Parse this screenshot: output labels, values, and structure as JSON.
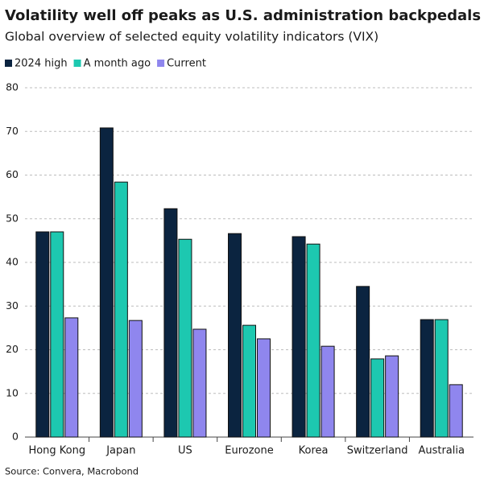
{
  "chart_data": {
    "type": "bar",
    "title": "Volatility well off peaks as U.S. administration backpedals",
    "subtitle": "Global overview of selected equity volatility indicators (VIX)",
    "source": "Source: Convera, Macrobond",
    "categories": [
      "Hong Kong",
      "Japan",
      "US",
      "Eurozone",
      "Korea",
      "Switzerland",
      "Australia"
    ],
    "series": [
      {
        "name": "2024 high",
        "color": "#0b2440",
        "values": [
          47.0,
          70.8,
          52.3,
          46.6,
          45.9,
          34.5,
          26.9
        ]
      },
      {
        "name": "A month ago",
        "color": "#1dc8b0",
        "values": [
          47.0,
          58.4,
          45.3,
          25.6,
          44.2,
          17.9,
          26.9
        ]
      },
      {
        "name": "Current",
        "color": "#8f86ee",
        "values": [
          27.3,
          26.7,
          24.7,
          22.5,
          20.8,
          18.6,
          12.0
        ]
      }
    ],
    "ylim": [
      0,
      80
    ],
    "yticks": [
      0,
      10,
      20,
      30,
      40,
      50,
      60,
      70,
      80
    ],
    "grid": true
  }
}
